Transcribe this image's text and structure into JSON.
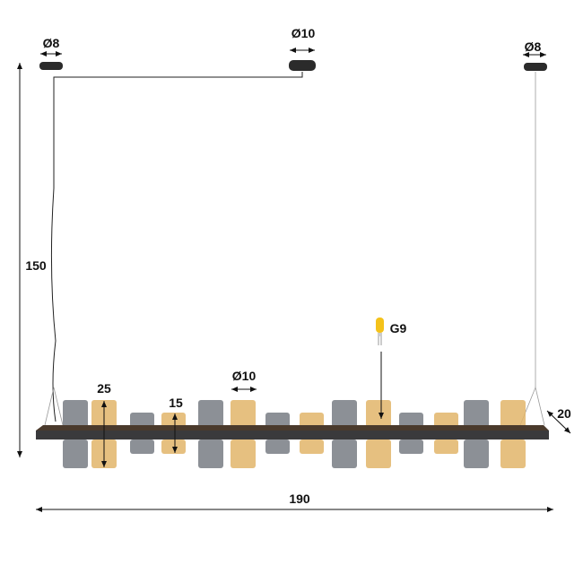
{
  "dimensions": {
    "canopy_left_diameter": "Ø8",
    "canopy_center_diameter": "Ø10",
    "canopy_right_diameter": "Ø8",
    "height": "150",
    "width": "190",
    "depth": "20",
    "tall_shade_height": "25",
    "short_shade_height": "15",
    "shade_diameter": "Ø10",
    "bulb_type": "G9"
  },
  "colors": {
    "smoke_glass": "#6f747c",
    "amber_glass": "#e2b56a",
    "frame": "#3a3a3c"
  },
  "shades": [
    "tall-smoke",
    "tall-amber",
    "short-smoke",
    "short-amber",
    "tall-smoke",
    "tall-amber",
    "short-smoke",
    "short-amber",
    "tall-smoke",
    "tall-amber",
    "short-smoke",
    "short-amber",
    "tall-smoke",
    "tall-amber"
  ]
}
